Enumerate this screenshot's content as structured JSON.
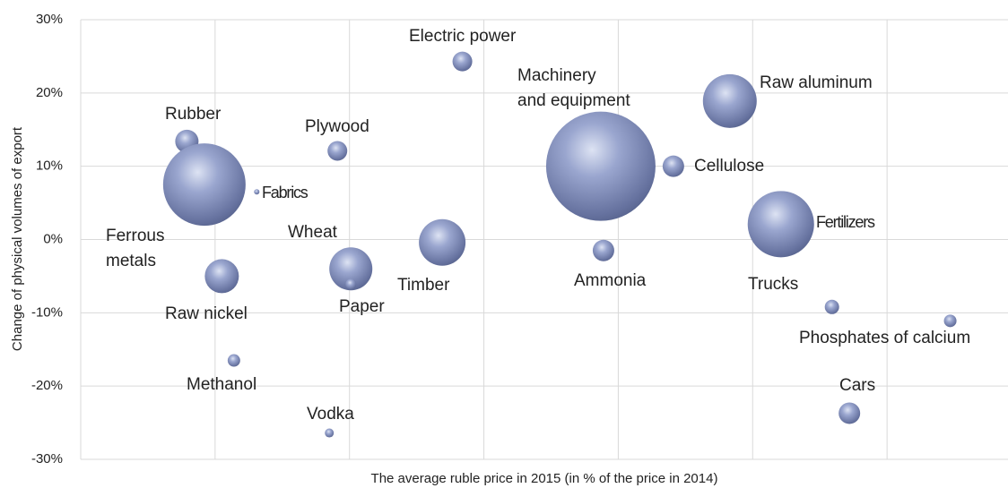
{
  "chart_data": {
    "type": "bubble",
    "x_label": "The average ruble price in 2015 (in % of the price in 2014)",
    "y_label": "Change of physical volumes of export",
    "xlim": [
      0,
      6.9
    ],
    "xticks": [
      0,
      1,
      2,
      3,
      4,
      5,
      6
    ],
    "ylim": [
      -30,
      30
    ],
    "yticks": [
      {
        "value": -30,
        "label": "-30%"
      },
      {
        "value": -20,
        "label": "-20%"
      },
      {
        "value": -10,
        "label": "-10%"
      },
      {
        "value": 0,
        "label": "0%"
      },
      {
        "value": 10,
        "label": "10%"
      },
      {
        "value": 20,
        "label": "20%"
      },
      {
        "value": 30,
        "label": "30%"
      }
    ],
    "grid": true,
    "color": "#6b79a8",
    "categories": [
      "Rubber",
      "Ferrous metals",
      "Fabrics",
      "Plywood",
      "Electric power",
      "Machinery and equipment",
      "Raw aluminum",
      "Cellulose",
      "Fertilizers",
      "Timber",
      "Wheat",
      "Paper",
      "Raw nickel",
      "Ammonia",
      "Trucks",
      "Phosphates of calcium",
      "Methanol",
      "Vodka",
      "Cars"
    ],
    "x": [
      0.79,
      0.92,
      1.31,
      1.91,
      2.84,
      3.87,
      4.83,
      4.41,
      5.21,
      2.69,
      2.01,
      2.01,
      1.05,
      3.89,
      5.59,
      6.47,
      1.14,
      1.85,
      5.72
    ],
    "values": [
      13.4,
      7.5,
      6.5,
      12.1,
      24.3,
      10,
      18.9,
      10.0,
      2.1,
      -0.4,
      -4.0,
      -6.1,
      -5.0,
      -1.5,
      -9.2,
      -11.1,
      -16.5,
      -26.4,
      -23.7
    ],
    "sizes": [
      169,
      2116,
      9,
      121,
      121,
      3721,
      900,
      144,
      1369,
      676,
      576,
      36,
      361,
      144,
      64,
      49,
      49,
      25,
      144
    ]
  }
}
